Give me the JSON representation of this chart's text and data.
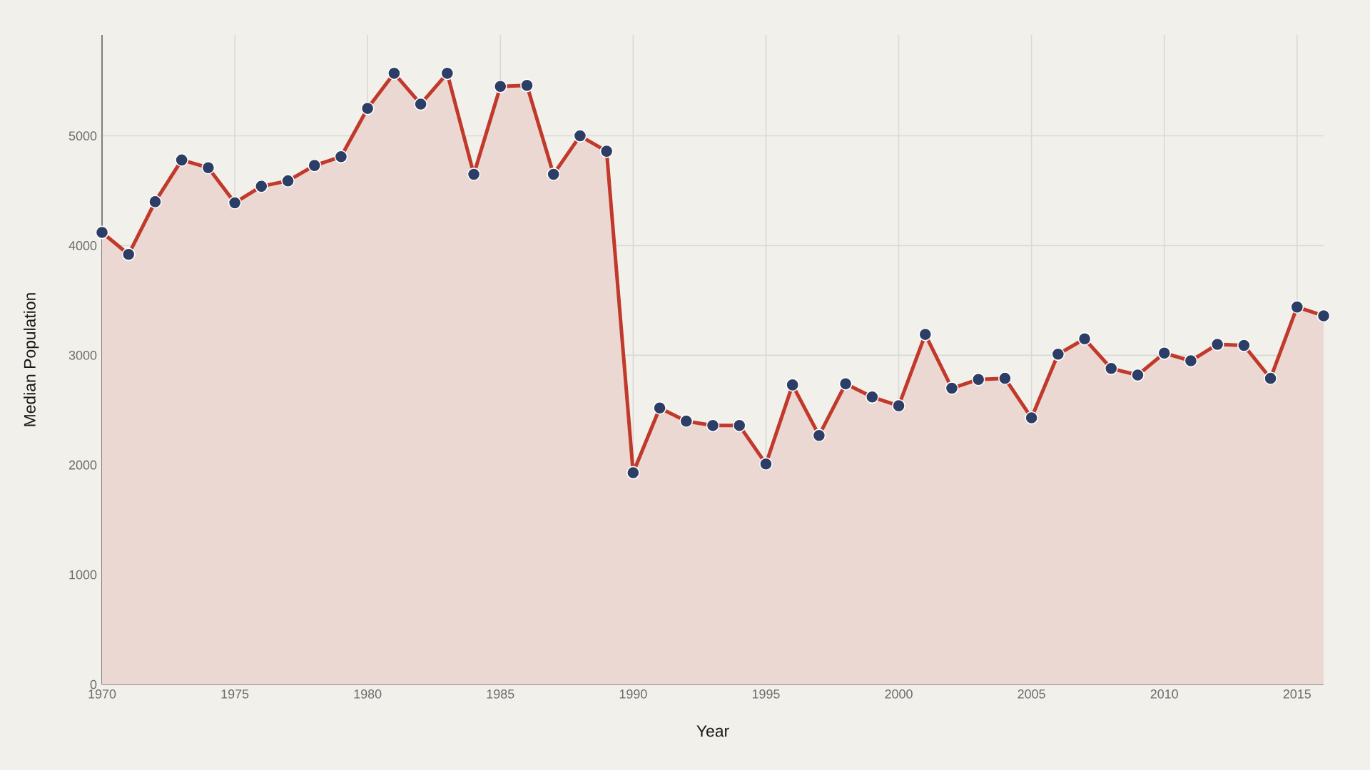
{
  "chart_data": {
    "type": "area",
    "xlabel": "Year",
    "ylabel": "Median Population",
    "x": [
      1970,
      1971,
      1972,
      1973,
      1974,
      1975,
      1976,
      1977,
      1978,
      1979,
      1980,
      1981,
      1982,
      1983,
      1984,
      1985,
      1986,
      1987,
      1988,
      1989,
      1990,
      1991,
      1992,
      1993,
      1994,
      1995,
      1996,
      1997,
      1998,
      1999,
      2000,
      2001,
      2002,
      2003,
      2004,
      2005,
      2006,
      2007,
      2008,
      2009,
      2010,
      2011,
      2012,
      2013,
      2014,
      2015,
      2016
    ],
    "series": [
      {
        "color": "#c0392b",
        "values": [
          4120,
          3920,
          4400,
          4780,
          4710,
          4390,
          4540,
          4590,
          4730,
          4810,
          5250,
          5570,
          5290,
          5570,
          4650,
          5450,
          5460,
          4650,
          5000,
          4860,
          1930,
          2520,
          2400,
          2360,
          2360,
          2010,
          2730,
          2270,
          2740,
          2620,
          2540,
          3190,
          2700,
          2780,
          2790,
          2430,
          3010,
          3150,
          2880,
          2820,
          3020,
          2950,
          3100,
          3090,
          2790,
          3440,
          3360
        ]
      }
    ],
    "xlim": [
      1970,
      2016
    ],
    "ylim": [
      0,
      5920
    ],
    "xticks": [
      1970,
      1975,
      1980,
      1985,
      1990,
      1995,
      2000,
      2005,
      2010,
      2015
    ],
    "yticks": [
      0,
      1000,
      2000,
      3000,
      4000,
      5000
    ],
    "grid": true,
    "marker": "circle",
    "line_style": "solid"
  }
}
